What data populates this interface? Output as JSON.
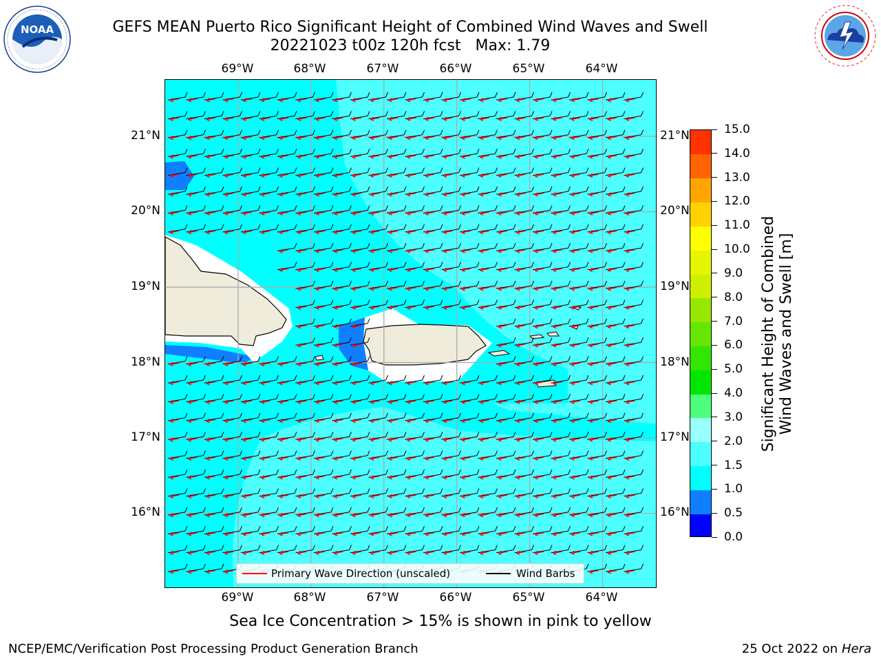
{
  "title": {
    "line1": "GEFS MEAN Puerto Rico Significant Height of Combined Wind Waves and Swell",
    "line2": "20221023 t00z 120h fcst   Max: 1.79"
  },
  "logos": {
    "noaa": {
      "text": "NOAA",
      "ring_text": "NATIONAL OCEANIC AND ATMOSPHERIC ADMINISTRATION · U.S. DEPARTMENT OF COMMERCE"
    },
    "nws": {
      "ring_text": "NATIONAL WEATHER SERVICE"
    }
  },
  "map": {
    "longitude_labels": [
      "69°W",
      "68°W",
      "67°W",
      "66°W",
      "65°W",
      "64°W"
    ],
    "latitude_labels": [
      "21°N",
      "20°N",
      "19°N",
      "18°N",
      "17°N",
      "16°N"
    ],
    "lon_range": [
      -70,
      -63.25
    ],
    "lat_range": [
      15,
      21.75
    ],
    "grid": true,
    "colors": {
      "ocean": "#00ffff",
      "band_1_5_2_0": "#4dffff",
      "band_0_5_1_0": "#0f7fff",
      "land": "#efecdc",
      "wave_direction": "#ff0000",
      "wind_barbs": "#000000"
    }
  },
  "colorbar": {
    "label": "Significant Height of Combined\nWind Waves and Swell [m]",
    "ticks": [
      "0.0",
      "0.5",
      "1.0",
      "1.5",
      "2.0",
      "3.0",
      "4.0",
      "5.0",
      "6.0",
      "7.0",
      "8.0",
      "9.0",
      "10.0",
      "11.0",
      "12.0",
      "13.0",
      "14.0",
      "15.0"
    ],
    "colors": [
      "#0000ff",
      "#0f7fff",
      "#00ffff",
      "#4dffff",
      "#99ffff",
      "#4dff7d",
      "#00e600",
      "#33e600",
      "#66e600",
      "#99e600",
      "#ccf000",
      "#e6f500",
      "#ffff00",
      "#ffd200",
      "#ffa500",
      "#ff6400",
      "#ff3200",
      "#ff0000"
    ]
  },
  "legend": {
    "wave_direction_label": "Primary Wave Direction (unscaled)",
    "wind_barbs_label": "Wind Barbs"
  },
  "note": "Sea Ice Concentration > 15% is shown in pink to yellow",
  "footer": {
    "left": "NCEP/EMC/Verification Post Processing Product Generation Branch",
    "right_prefix": "25 Oct 2022 on ",
    "right_host": "Hera"
  }
}
